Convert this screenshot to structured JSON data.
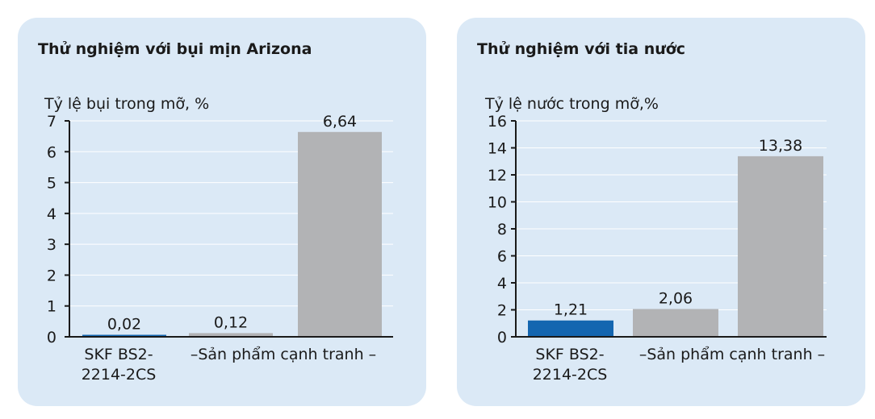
{
  "colors": {
    "panel_bg": "#dbe9f6",
    "skf_blue": "#1466b0",
    "competitor_gray": "#b2b3b5"
  },
  "chart_data": [
    {
      "type": "bar",
      "title": "Thử nghiệm với bụi mịn Arizona",
      "ylabel": "Tỷ lệ bụi trong mỡ, %",
      "ylim": [
        0,
        7
      ],
      "yticks": [
        0,
        1,
        2,
        3,
        4,
        5,
        6,
        7
      ],
      "grid": true,
      "bars": [
        {
          "value": 0.02,
          "label": "0,02",
          "color": "#1466b0"
        },
        {
          "value": 0.12,
          "label": "0,12",
          "color": "#b2b3b5"
        },
        {
          "value": 6.64,
          "label": "6,64",
          "color": "#b2b3b5"
        }
      ],
      "category_labels": {
        "skf_line1": "SKF BS2-",
        "skf_line2": "2214-2CS",
        "competitor": "–Sản phẩm cạnh tranh –"
      }
    },
    {
      "type": "bar",
      "title": "Thử nghiệm với tia nước",
      "ylabel": "Tỷ lệ nước trong mỡ,%",
      "ylim": [
        0,
        16
      ],
      "yticks": [
        0,
        2,
        4,
        6,
        8,
        10,
        12,
        14,
        16
      ],
      "grid": true,
      "bars": [
        {
          "value": 1.21,
          "label": "1,21",
          "color": "#1466b0"
        },
        {
          "value": 2.06,
          "label": "2,06",
          "color": "#b2b3b5"
        },
        {
          "value": 13.38,
          "label": "13,38",
          "color": "#b2b3b5"
        }
      ],
      "category_labels": {
        "skf_line1": "SKF BS2-",
        "skf_line2": "2214-2CS",
        "competitor": "–Sản phẩm cạnh tranh –"
      }
    }
  ]
}
